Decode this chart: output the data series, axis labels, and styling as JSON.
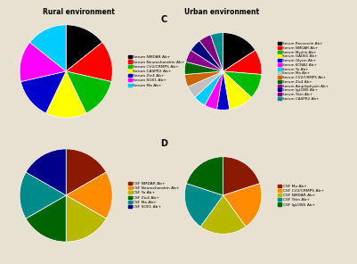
{
  "title_A": "Rural environment",
  "title_C": "Urban environment",
  "bg_color": "#e8e0d0",
  "panel_A": {
    "labels": [
      "Serum NMDAR Ab+",
      "Serum Neurochondrin Ab+",
      "Serum CV2/CRMP5 Ab+",
      "Serum CASPR2 Ab+",
      "Serum Zic4 Ab+",
      "Serum SOX1 Ab+",
      "Serum Ma Ab+"
    ],
    "values": [
      1,
      1,
      1,
      1,
      1,
      1,
      1
    ],
    "colors": [
      "#000000",
      "#ff0000",
      "#00bb00",
      "#ffff00",
      "#0000cc",
      "#ff00ff",
      "#00ccff"
    ],
    "startangle": 90
  },
  "panel_B": {
    "labels": [
      "CSF NMDAR Ab+",
      "CSF Neurochondrin Ab+",
      "CSF Yo Ab+",
      "CSF Zic4 Ab+",
      "CSF Ma Ab+",
      "CSF SOX1 Ab+"
    ],
    "values": [
      1,
      1,
      1,
      1,
      1,
      1
    ],
    "colors": [
      "#8b1a00",
      "#ff8c00",
      "#b8b800",
      "#006400",
      "#008b8b",
      "#00008b"
    ],
    "startangle": 90
  },
  "panel_C": {
    "labels": [
      "Serum Recoverin Ab+",
      "Serum NMDAR Ab+",
      "Serum Myelin Ab+",
      "Serum GAD65 Ab+",
      "Serum Glycin Ab+",
      "Serum KCNA2 Ab+",
      "Serum Yo Ab+",
      "Serum Ma Ab+",
      "Serum CV2/CRMP5 Ab+",
      "Serum Zic4 Ab+",
      "Serum Amphiphysin Ab+",
      "Serum IgLON5 Ab+",
      "Serum Titin Ab+",
      "Serum CASPR2 Ab+"
    ],
    "values": [
      3,
      2,
      2,
      2,
      1,
      1,
      1,
      1,
      1,
      1,
      1,
      1,
      1,
      1
    ],
    "colors": [
      "#000000",
      "#ff0000",
      "#00bb00",
      "#ffff00",
      "#0000cc",
      "#ff00ff",
      "#00ccff",
      "#c0c0c0",
      "#cc6600",
      "#006600",
      "#8b008b",
      "#000080",
      "#800080",
      "#008b8b"
    ],
    "startangle": 90
  },
  "panel_D": {
    "labels": [
      "CSF Ma Ab+",
      "CSF CV2/CRMP5 Ab+",
      "CSF NMDAR Ab+",
      "CSF Titin Ab+",
      "CSF IgLON5 Ab+"
    ],
    "values": [
      1,
      1,
      1,
      1,
      1
    ],
    "colors": [
      "#8b1a00",
      "#ff8c00",
      "#b8b800",
      "#008b8b",
      "#006400"
    ],
    "startangle": 90
  }
}
